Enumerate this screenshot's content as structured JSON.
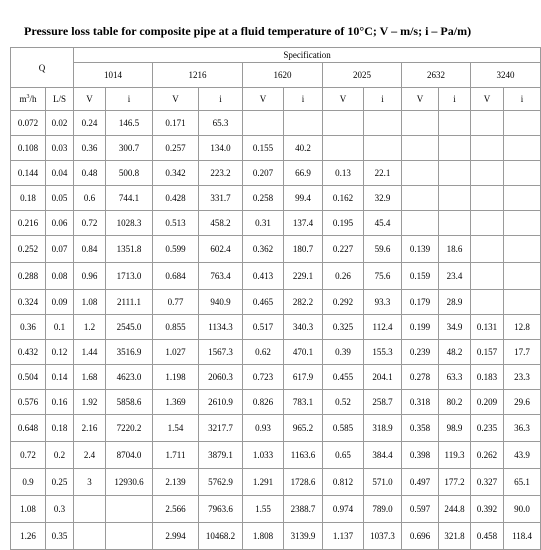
{
  "title": "Pressure loss table for composite pipe at a fluid temperature of 10°C; V – m/s; i – Pa/m)",
  "header": {
    "q_label": "Q",
    "spec_label": "Specification",
    "specs": [
      "1014",
      "1216",
      "1620",
      "2025",
      "2632",
      "3240"
    ],
    "m3h_base": "m",
    "m3h_sup": "3",
    "m3h_tail": "/h",
    "ls_label": "L/S",
    "v_label": "V",
    "i_label": "i"
  },
  "rows": [
    [
      "0.072",
      "0.02",
      "0.24",
      "146.5",
      "0.171",
      "65.3",
      "",
      "",
      "",
      "",
      "",
      "",
      "",
      ""
    ],
    [
      "0.108",
      "0.03",
      "0.36",
      "300.7",
      "0.257",
      "134.0",
      "0.155",
      "40.2",
      "",
      "",
      "",
      "",
      "",
      ""
    ],
    [
      "0.144",
      "0.04",
      "0.48",
      "500.8",
      "0.342",
      "223.2",
      "0.207",
      "66.9",
      "0.13",
      "22.1",
      "",
      "",
      "",
      ""
    ],
    [
      "0.18",
      "0.05",
      "0.6",
      "744.1",
      "0.428",
      "331.7",
      "0.258",
      "99.4",
      "0.162",
      "32.9",
      "",
      "",
      "",
      ""
    ],
    [
      "0.216",
      "0.06",
      "0.72",
      "1028.3",
      "0.513",
      "458.2",
      "0.31",
      "137.4",
      "0.195",
      "45.4",
      "",
      "",
      "",
      ""
    ],
    [
      "0.252",
      "0.07",
      "0.84",
      "1351.8",
      "0.599",
      "602.4",
      "0.362",
      "180.7",
      "0.227",
      "59.6",
      "0.139",
      "18.6",
      "",
      ""
    ],
    [
      "0.288",
      "0.08",
      "0.96",
      "1713.0",
      "0.684",
      "763.4",
      "0.413",
      "229.1",
      "0.26",
      "75.6",
      "0.159",
      "23.4",
      "",
      ""
    ],
    [
      "0.324",
      "0.09",
      "1.08",
      "2111.1",
      "0.77",
      "940.9",
      "0.465",
      "282.2",
      "0.292",
      "93.3",
      "0.179",
      "28.9",
      "",
      ""
    ],
    [
      "0.36",
      "0.1",
      "1.2",
      "2545.0",
      "0.855",
      "1134.3",
      "0.517",
      "340.3",
      "0.325",
      "112.4",
      "0.199",
      "34.9",
      "0.131",
      "12.8"
    ],
    [
      "0.432",
      "0.12",
      "1.44",
      "3516.9",
      "1.027",
      "1567.3",
      "0.62",
      "470.1",
      "0.39",
      "155.3",
      "0.239",
      "48.2",
      "0.157",
      "17.7"
    ],
    [
      "0.504",
      "0.14",
      "1.68",
      "4623.0",
      "1.198",
      "2060.3",
      "0.723",
      "617.9",
      "0.455",
      "204.1",
      "0.278",
      "63.3",
      "0.183",
      "23.3"
    ],
    [
      "0.576",
      "0.16",
      "1.92",
      "5858.6",
      "1.369",
      "2610.9",
      "0.826",
      "783.1",
      "0.52",
      "258.7",
      "0.318",
      "80.2",
      "0.209",
      "29.6"
    ],
    [
      "0.648",
      "0.18",
      "2.16",
      "7220.2",
      "1.54",
      "3217.7",
      "0.93",
      "965.2",
      "0.585",
      "318.9",
      "0.358",
      "98.9",
      "0.235",
      "36.3"
    ],
    [
      "0.72",
      "0.2",
      "2.4",
      "8704.0",
      "1.711",
      "3879.1",
      "1.033",
      "1163.6",
      "0.65",
      "384.4",
      "0.398",
      "119.3",
      "0.262",
      "43.9"
    ],
    [
      "0.9",
      "0.25",
      "3",
      "12930.6",
      "2.139",
      "5762.9",
      "1.291",
      "1728.6",
      "0.812",
      "571.0",
      "0.497",
      "177.2",
      "0.327",
      "65.1"
    ],
    [
      "1.08",
      "0.3",
      "",
      "",
      "2.566",
      "7963.6",
      "1.55",
      "2388.7",
      "0.974",
      "789.0",
      "0.597",
      "244.8",
      "0.392",
      "90.0"
    ],
    [
      "1.26",
      "0.35",
      "",
      "",
      "2.994",
      "10468.2",
      "1.808",
      "3139.9",
      "1.137",
      "1037.3",
      "0.696",
      "321.8",
      "0.458",
      "118.4"
    ]
  ]
}
